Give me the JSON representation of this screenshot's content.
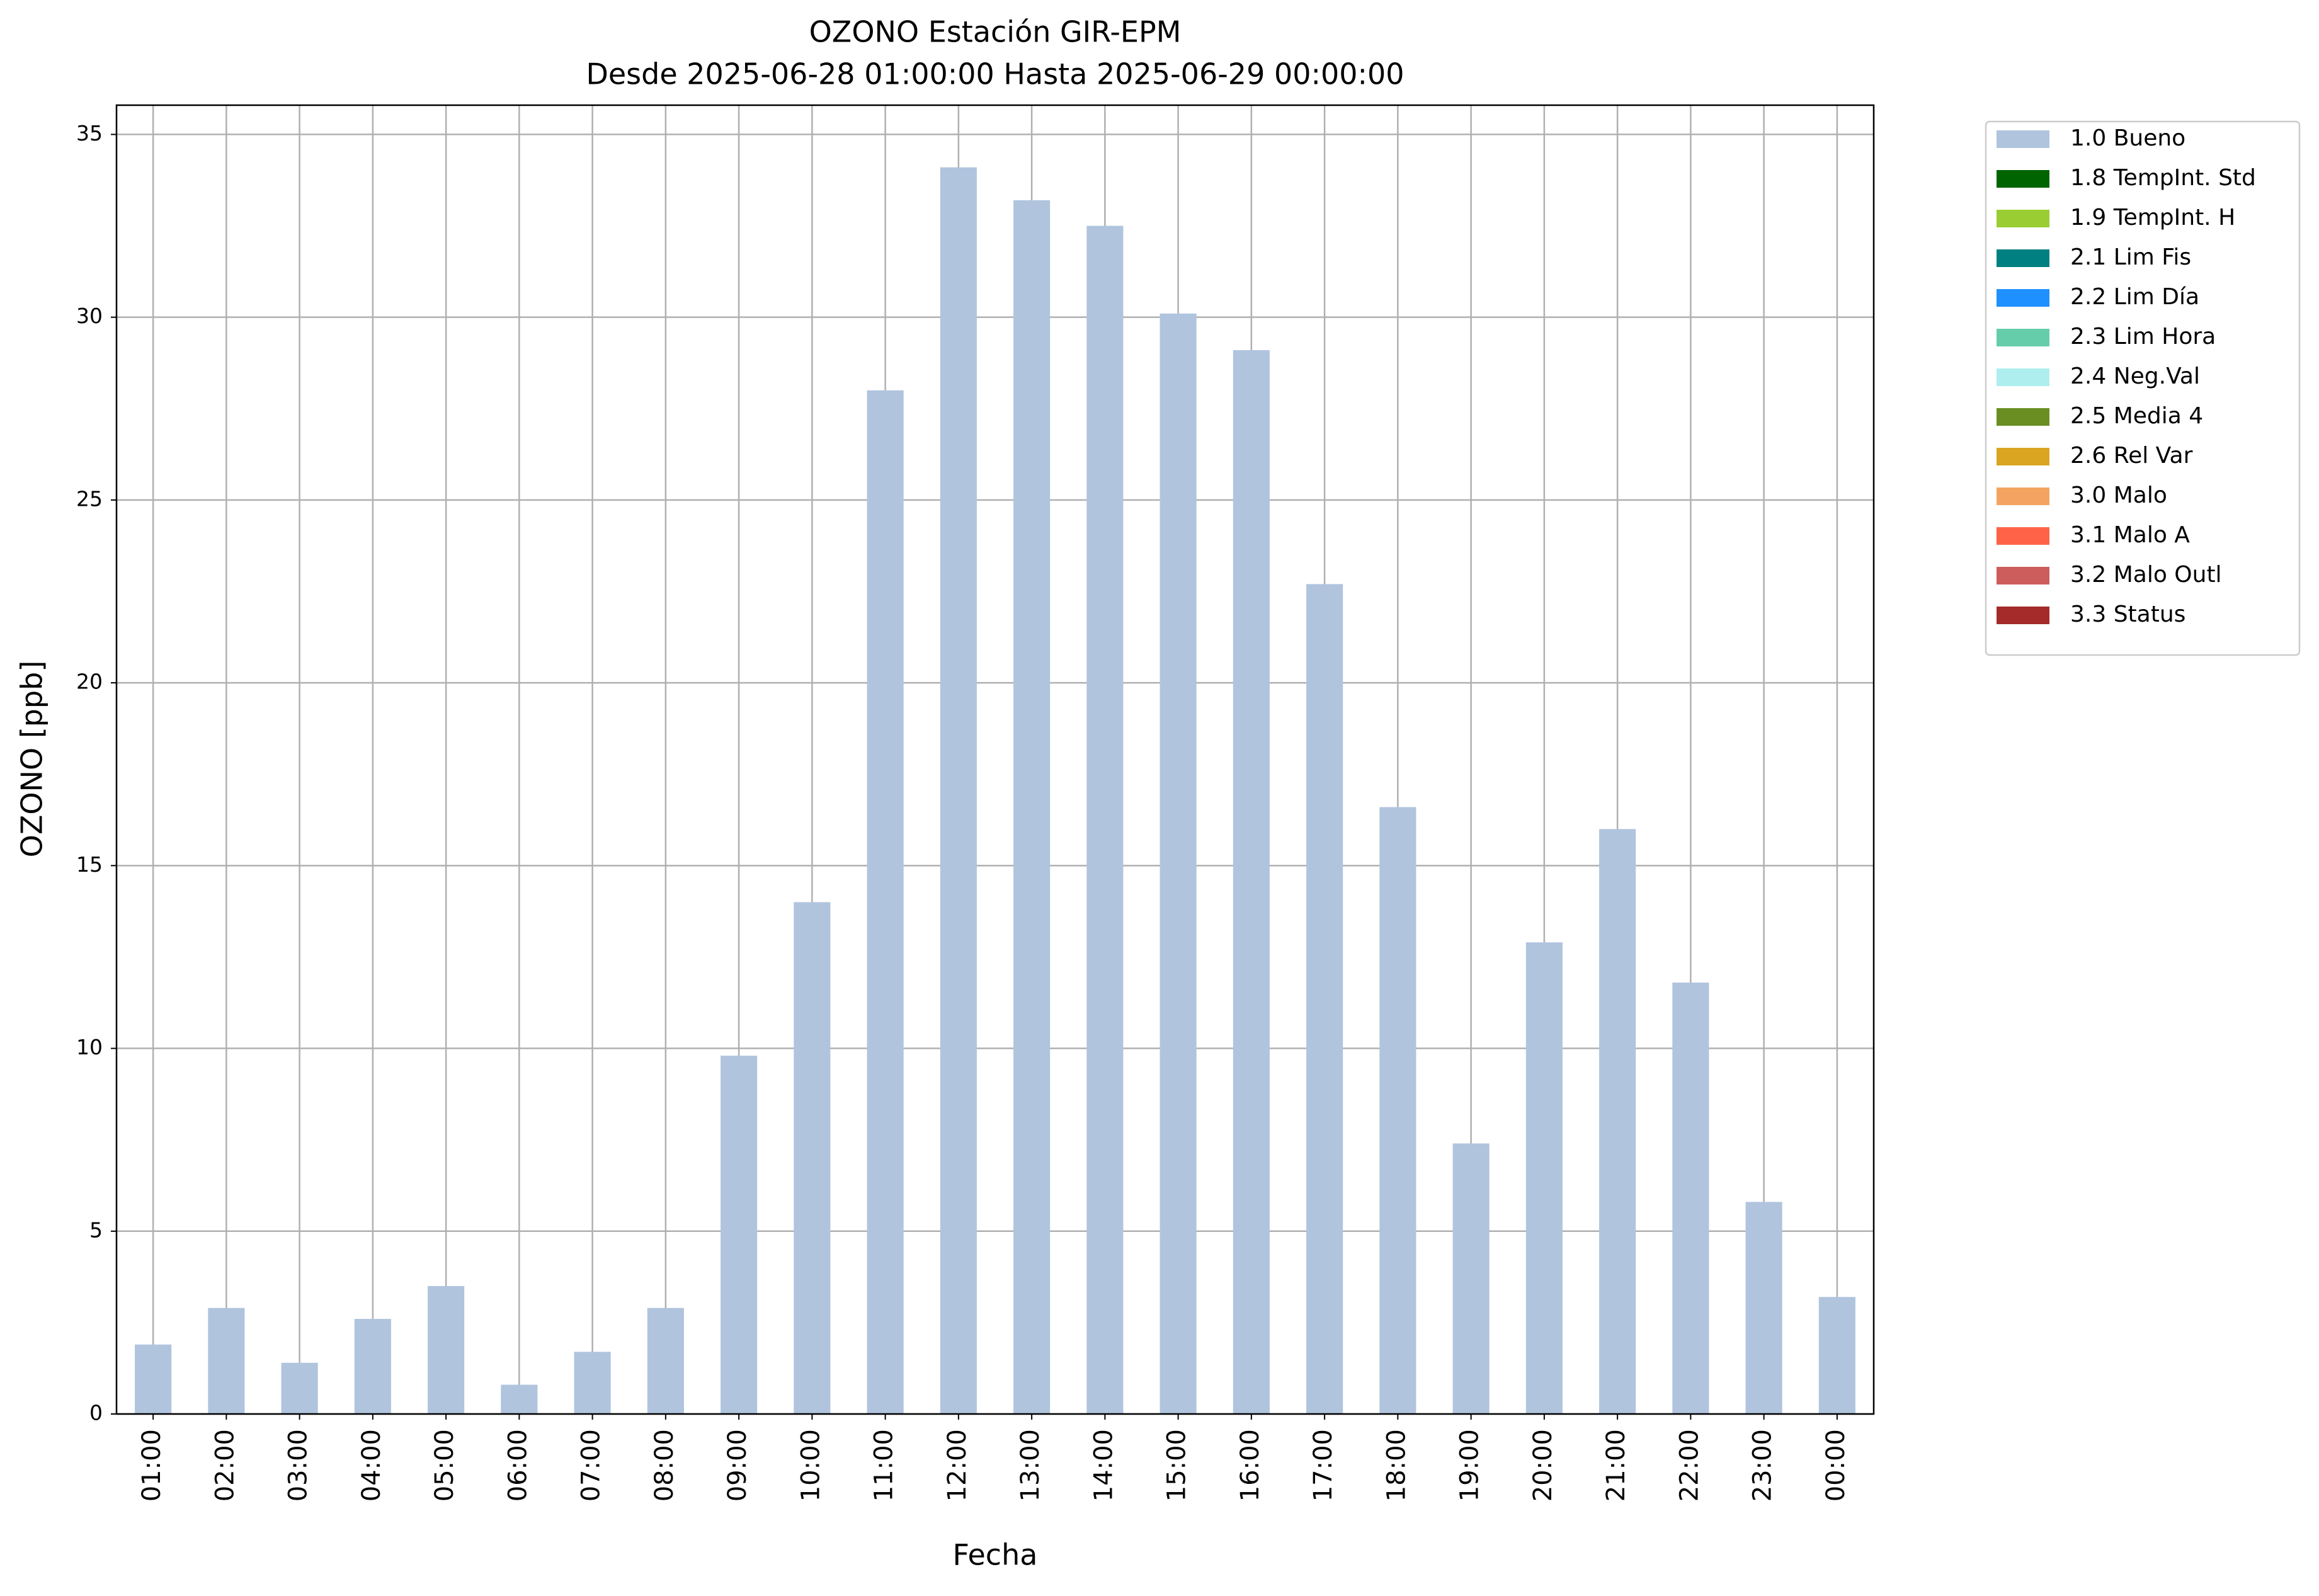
{
  "chart_data": {
    "type": "bar",
    "title": "OZONO Estación GIR-EPM",
    "subtitle": "Desde 2025-06-28 01:00:00 Hasta 2025-06-29 00:00:00",
    "x_label": "Fecha",
    "y_label": "OZONO [ppb]",
    "categories": [
      "01:00",
      "02:00",
      "03:00",
      "04:00",
      "05:00",
      "06:00",
      "07:00",
      "08:00",
      "09:00",
      "10:00",
      "11:00",
      "12:00",
      "13:00",
      "14:00",
      "15:00",
      "16:00",
      "17:00",
      "18:00",
      "19:00",
      "20:00",
      "21:00",
      "22:00",
      "23:00",
      "00:00"
    ],
    "series": [
      {
        "name": "1.0 Bueno",
        "color": "#b0c4de",
        "values": [
          1.9,
          2.9,
          1.4,
          2.6,
          3.5,
          0.8,
          1.7,
          2.9,
          9.8,
          14.0,
          28.0,
          34.1,
          33.2,
          32.5,
          30.1,
          29.1,
          22.7,
          16.6,
          7.4,
          12.9,
          16.0,
          11.8,
          5.8,
          3.2
        ]
      },
      {
        "name": "1.8 TempInt. Std",
        "color": "#006400"
      },
      {
        "name": "1.9 TempInt. H",
        "color": "#9acd32"
      },
      {
        "name": "2.1 Lim Fis",
        "color": "#008080"
      },
      {
        "name": "2.2 Lim Día",
        "color": "#1e90ff"
      },
      {
        "name": "2.3 Lim Hora",
        "color": "#66cdaa"
      },
      {
        "name": "2.4 Neg.Val",
        "color": "#afeeee"
      },
      {
        "name": "2.5 Media 4",
        "color": "#6b8e23"
      },
      {
        "name": "2.6 Rel Var",
        "color": "#daa520"
      },
      {
        "name": "3.0 Malo",
        "color": "#f4a460"
      },
      {
        "name": "3.1 Malo A",
        "color": "#ff6347"
      },
      {
        "name": "3.2 Malo Outl",
        "color": "#cd5c5c"
      },
      {
        "name": "3.3 Status",
        "color": "#a52a2a"
      }
    ],
    "ylim": [
      0,
      35.8
    ],
    "yticks": [
      0,
      5,
      10,
      15,
      20,
      25,
      30,
      35
    ],
    "grid": true,
    "legend": "outside-right"
  }
}
